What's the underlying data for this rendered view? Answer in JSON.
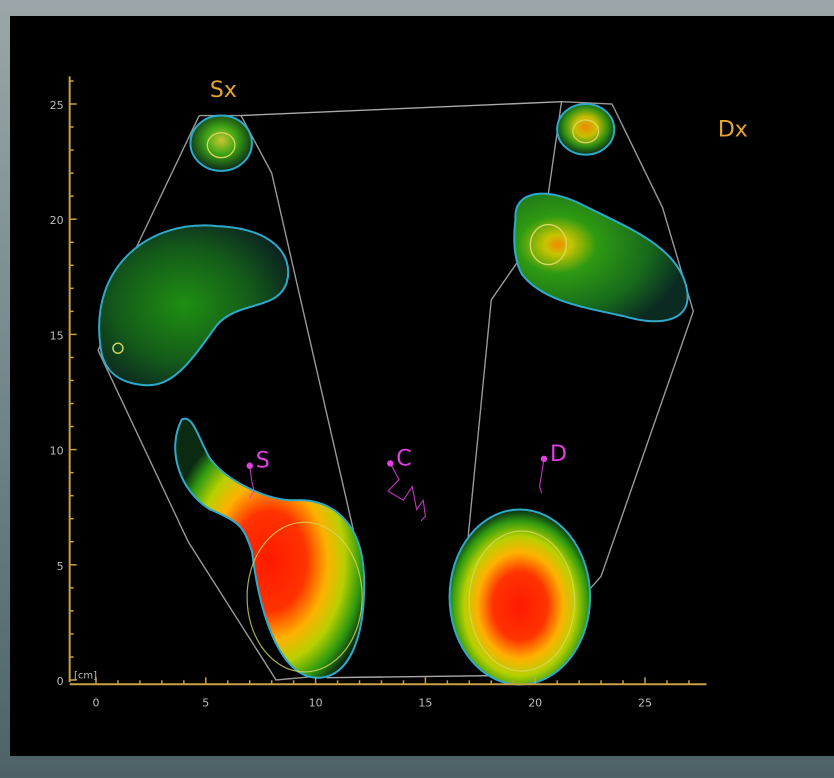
{
  "chart_data": {
    "type": "heatmap",
    "title": "",
    "xlabel": "",
    "ylabel": "",
    "unit_label": "[cm]",
    "xlim": [
      0,
      27
    ],
    "ylim": [
      0,
      25.5
    ],
    "xticks": [
      0,
      5,
      10,
      15,
      20,
      25
    ],
    "yticks": [
      0,
      5,
      10,
      15,
      20,
      25
    ],
    "grid": false,
    "foot_labels": [
      {
        "text": "Sx",
        "x": 5.8,
        "y": 25.3
      },
      {
        "text": "Dx",
        "x": 29.0,
        "y": 23.6
      }
    ],
    "markers": [
      {
        "label": "S",
        "x": 7.0,
        "y": 9.3
      },
      {
        "label": "C",
        "x": 13.4,
        "y": 9.4
      },
      {
        "label": "D",
        "x": 20.4,
        "y": 9.6
      }
    ],
    "pressure_regions": [
      {
        "foot": "Sx",
        "region": "toe",
        "cx": 5.7,
        "cy": 23.3,
        "rx": 1.4,
        "ry": 1.2,
        "peak_level": 0.55
      },
      {
        "foot": "Sx",
        "region": "metatarsal",
        "cx": 2.3,
        "cy": 17.0,
        "rx": 4.6,
        "ry": 3.4,
        "peak_level": 0.35
      },
      {
        "foot": "Sx",
        "region": "heel",
        "cx": 9.0,
        "cy": 3.5,
        "rx": 3.2,
        "ry": 3.6,
        "peak_level": 1.0
      },
      {
        "foot": "Dx",
        "region": "toe",
        "cx": 22.3,
        "cy": 23.9,
        "rx": 1.3,
        "ry": 1.1,
        "peak_level": 0.75
      },
      {
        "foot": "Dx",
        "region": "metatarsal",
        "cx": 22.0,
        "cy": 18.5,
        "rx": 4.1,
        "ry": 2.6,
        "peak_level": 0.8
      },
      {
        "foot": "Dx",
        "region": "heel",
        "cx": 19.3,
        "cy": 3.6,
        "rx": 3.2,
        "ry": 3.8,
        "peak_level": 1.0
      }
    ],
    "colors": {
      "axis": "#c9a241",
      "foot_label": "#e6a432",
      "marker": "#e040e0",
      "contour": "#2fa9c9",
      "envelope": "#a9a9a9",
      "background": "#000000"
    }
  }
}
